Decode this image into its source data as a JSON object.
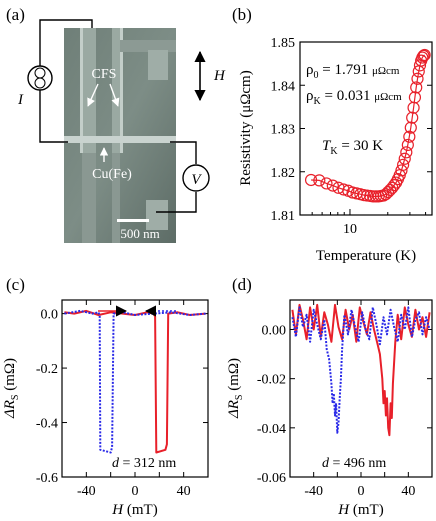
{
  "panels": {
    "a": {
      "label": "(a)",
      "annotations": {
        "cfs": "CFS",
        "current": "I",
        "field": "H",
        "wire": "Cu(Fe)",
        "voltage": "V",
        "scale": "500 nm"
      }
    },
    "b": {
      "label": "(b)"
    },
    "c": {
      "label": "(c)"
    },
    "d": {
      "label": "(d)"
    }
  },
  "chart_data": [
    {
      "panel": "b",
      "type": "scatter",
      "xlabel": "Temperature (K)",
      "ylabel": "Resistivity (μΩcm)",
      "xscale": "log",
      "xlim": [
        4,
        45
      ],
      "ylim": [
        1.81,
        1.85
      ],
      "xticks": [
        10
      ],
      "yticks": [
        1.81,
        1.82,
        1.83,
        1.84,
        1.85
      ],
      "annotations": {
        "rho0_sym": "ρ",
        "rho0_sub": "0",
        "rho0_val": " = 1.791 ",
        "rho0_unit": "μΩcm",
        "rhoK_sym": "ρ",
        "rhoK_sub": "K",
        "rhoK_val": " = 0.031 ",
        "rhoK_unit": "μΩcm",
        "tk_sym": "T",
        "tk_sub": "K",
        "tk_val": " = 30 K"
      },
      "marker_color": "#e8202a",
      "x": [
        4.9,
        5.7,
        6.5,
        7.3,
        8.1,
        8.9,
        9.7,
        10.5,
        11.3,
        12.1,
        12.9,
        13.7,
        14.5,
        15.3,
        16.1,
        16.9,
        17.7,
        18.5,
        19.3,
        20.1,
        20.9,
        21.7,
        22.5,
        23.3,
        24.1,
        24.9,
        25.7,
        26.5,
        27.3,
        28.1,
        28.9,
        29.7,
        30.5,
        31.3,
        32.1,
        32.9,
        33.7,
        34.5,
        35.3,
        36.1,
        36.9,
        37.7,
        38.5,
        39.3
      ],
      "y": [
        1.8181,
        1.818,
        1.8173,
        1.8168,
        1.8163,
        1.8159,
        1.8156,
        1.8152,
        1.815,
        1.8148,
        1.8146,
        1.8145,
        1.8144,
        1.8143,
        1.8143,
        1.8143,
        1.8144,
        1.8145,
        1.8148,
        1.8153,
        1.8158,
        1.8163,
        1.8169,
        1.8175,
        1.8183,
        1.8192,
        1.8203,
        1.8216,
        1.823,
        1.8245,
        1.8262,
        1.8281,
        1.8302,
        1.8325,
        1.8348,
        1.8372,
        1.8395,
        1.8415,
        1.8432,
        1.8446,
        1.8457,
        1.8464,
        1.8468,
        1.847
      ]
    },
    {
      "panel": "c",
      "type": "line",
      "xlabel": "H (mT)",
      "ylabel": "ΔRS (mΩ)",
      "xlabel_sym": "H",
      "xlabel_unit": " (mT)",
      "ylabel_sym": "ΔR",
      "ylabel_sub": "S",
      "ylabel_unit": " (mΩ)",
      "xlim": [
        -60,
        60
      ],
      "ylim": [
        -0.6,
        0.05
      ],
      "xticks": [
        -40,
        0,
        40
      ],
      "yticks": [
        0.0,
        -0.2,
        -0.4,
        -0.6
      ],
      "ytick_labels": [
        "0.0",
        "-0.2",
        "-0.4",
        "-0.6"
      ],
      "annotation_sym": "d",
      "annotation_val": " = 312 nm",
      "series": [
        {
          "color": "#e8202a",
          "style": "solid",
          "x": [
            -58,
            -50,
            -40,
            -30,
            -20,
            -10,
            0,
            10,
            15,
            16.5,
            17.5,
            25,
            26.2,
            27.3,
            35,
            45,
            58
          ],
          "y": [
            0.005,
            0.0,
            0.01,
            -0.005,
            0.005,
            0.0,
            -0.005,
            0.005,
            0.0,
            -0.01,
            -0.51,
            -0.5,
            -0.48,
            0.0,
            0.005,
            -0.005,
            0.0
          ]
        },
        {
          "color": "#2a2ae8",
          "style": "dotted",
          "x": [
            -58,
            -45,
            -35,
            -30,
            -29,
            -28.5,
            -20,
            -18.8,
            -17.6,
            -10,
            0,
            15,
            30,
            45,
            58
          ],
          "y": [
            0.0,
            0.01,
            0.0,
            0.005,
            -0.01,
            -0.5,
            -0.51,
            -0.49,
            0.0,
            0.005,
            -0.005,
            0.0,
            0.005,
            -0.005,
            0.0
          ]
        }
      ]
    },
    {
      "panel": "d",
      "type": "line",
      "xlabel": "H (mT)",
      "ylabel": "ΔRS (mΩ)",
      "xlabel_sym": "H",
      "xlabel_unit": " (mT)",
      "ylabel_sym": "ΔR",
      "ylabel_sub": "S",
      "ylabel_unit": " (mΩ)",
      "xlim": [
        -60,
        60
      ],
      "ylim": [
        -0.06,
        0.012
      ],
      "xticks": [
        -40,
        0,
        40
      ],
      "yticks": [
        0.0,
        -0.02,
        -0.04,
        -0.06
      ],
      "ytick_labels": [
        "0.00",
        "-0.02",
        "-0.04",
        "-0.06"
      ],
      "annotation_sym": "d",
      "annotation_val": " = 496 nm",
      "series": [
        {
          "color": "#e8202a",
          "style": "solid",
          "x": [
            -58,
            -55,
            -52,
            -49,
            -46,
            -43,
            -40,
            -37,
            -34,
            -31,
            -28,
            -25,
            -22,
            -19,
            -16,
            -13,
            -10,
            -7,
            -4,
            -1,
            2,
            5,
            8,
            11,
            14,
            16,
            18,
            19,
            20,
            21,
            22,
            23,
            24,
            25,
            26,
            27,
            29,
            31,
            34,
            37,
            40,
            43,
            46,
            49,
            52,
            55,
            58
          ],
          "y": [
            0.008,
            -0.002,
            0.01,
            0.004,
            -0.004,
            0.009,
            0.0,
            0.01,
            -0.003,
            0.007,
            0.002,
            -0.005,
            0.01,
            0.001,
            -0.004,
            0.008,
            0.0,
            0.006,
            -0.005,
            0.009,
            0.003,
            -0.002,
            0.007,
            0.0,
            -0.006,
            -0.01,
            -0.02,
            -0.03,
            -0.025,
            -0.035,
            -0.028,
            -0.04,
            -0.043,
            -0.03,
            -0.036,
            -0.022,
            -0.005,
            0.006,
            -0.004,
            0.009,
            0.002,
            -0.003,
            0.008,
            0.0,
            0.005,
            -0.003,
            0.007
          ]
        },
        {
          "color": "#2a2ae8",
          "style": "dotted",
          "x": [
            -58,
            -55,
            -52,
            -49,
            -46,
            -43,
            -40,
            -37,
            -34,
            -31,
            -29,
            -27,
            -25,
            -24,
            -23,
            -22,
            -21,
            -20,
            -19,
            -18,
            -17,
            -16,
            -14,
            -11,
            -8,
            -5,
            -2,
            1,
            4,
            7,
            10,
            13,
            16,
            19,
            22,
            25,
            28,
            31,
            34,
            37,
            40,
            43,
            46,
            49,
            52,
            55,
            58
          ],
          "y": [
            0.005,
            -0.003,
            0.009,
            0.001,
            0.006,
            -0.005,
            0.008,
            0.002,
            -0.004,
            0.004,
            -0.008,
            -0.012,
            -0.022,
            -0.03,
            -0.026,
            -0.035,
            -0.03,
            -0.042,
            -0.038,
            -0.028,
            -0.02,
            -0.008,
            0.006,
            -0.002,
            0.008,
            0.001,
            -0.005,
            0.007,
            0.0,
            -0.004,
            0.009,
            0.002,
            -0.006,
            0.005,
            -0.002,
            0.008,
            0.001,
            -0.005,
            0.006,
            0.0,
            0.009,
            -0.003,
            0.004,
            0.007,
            -0.002,
            0.005,
            0.0
          ]
        }
      ]
    }
  ]
}
